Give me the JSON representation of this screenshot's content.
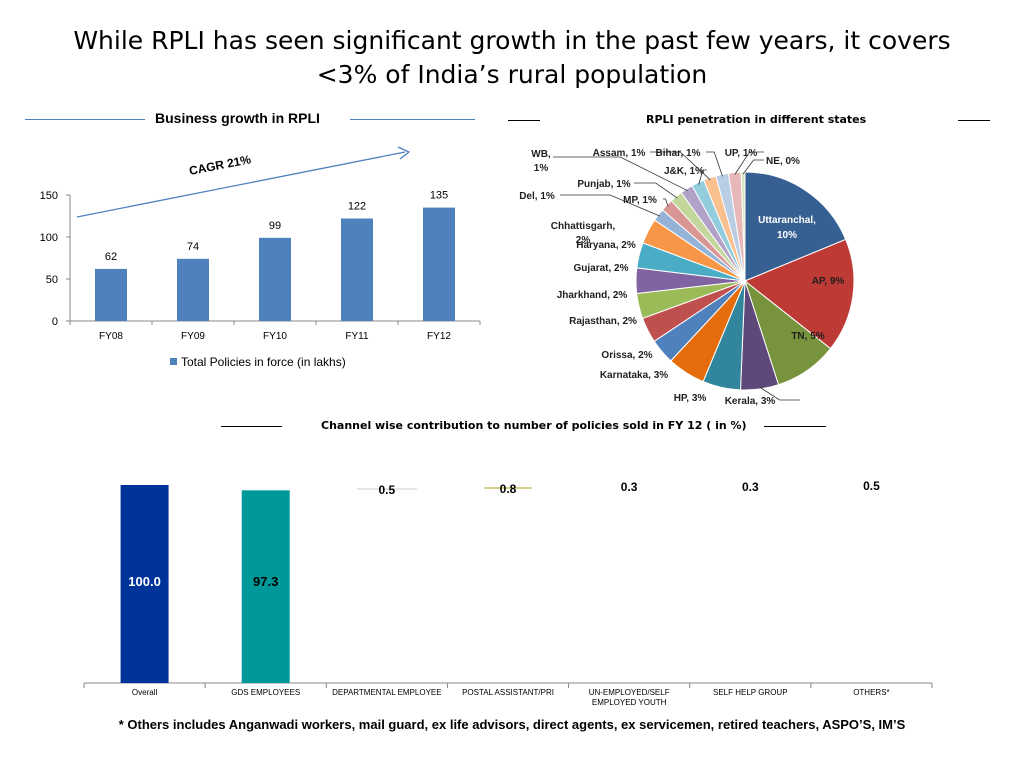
{
  "slide": {
    "title": "While RPLI has seen significant growth in the past few years, it covers <3% of India’s rural population",
    "footnote": "* Others includes Anganwadi workers, mail guard, ex life advisors, direct agents, ex servicemen, retired teachers, ASPO’S, IM’S"
  },
  "panels": {
    "growth_title": "Business growth in RPLI",
    "cagr_label": "CAGR 21%",
    "pie_title": "RPLI penetration in different states",
    "channel_title": "Channel wise contribution to number of policies sold in FY 12 ( in %)"
  },
  "colors": {
    "bar_blue": "#4F81BD",
    "overall_bar": "#003399",
    "gds_bar": "#009999",
    "rule_blue": "#4F81BD"
  },
  "chart_data": [
    {
      "type": "bar",
      "title": "Business growth in RPLI",
      "categories": [
        "FY08",
        "FY09",
        "FY10",
        "FY11",
        "FY12"
      ],
      "series": [
        {
          "name": "Total Policies in force (in lakhs)",
          "values": [
            62,
            74,
            99,
            122,
            135
          ]
        }
      ],
      "ylim": [
        0,
        150
      ],
      "yticks": [
        0,
        50,
        100,
        150
      ],
      "grid": false,
      "legend": "bottom",
      "annotation": "CAGR 21%"
    },
    {
      "type": "pie",
      "title": "RPLI penetration in different states",
      "labels": [
        "Uttaranchal",
        "AP",
        "TN",
        "Kerala",
        "HP",
        "Karnataka",
        "Orissa",
        "Rajasthan",
        "Jharkhand",
        "Gujarat",
        "Haryana",
        "Chhattisgarh",
        "Del",
        "MP",
        "Punjab",
        "WB",
        "J&K",
        "Assam",
        "Bihar",
        "UP",
        "NE"
      ],
      "values": [
        10,
        9,
        5,
        3,
        3,
        3,
        2,
        2,
        2,
        2,
        2,
        2,
        1,
        1,
        1,
        1,
        1,
        1,
        1,
        1,
        0
      ],
      "display_labels": [
        "Uttaranchal, 10%",
        "AP, 9%",
        "TN, 5%",
        "Kerala, 3%",
        "HP, 3%",
        "Karnataka, 3%",
        "Orissa, 2%",
        "Rajasthan, 2%",
        "Jharkhand, 2%",
        "Gujarat, 2%",
        "Haryana, 2%",
        "Chhattisgarh, 2%",
        "Del, 1%",
        "MP, 1%",
        "Punjab, 1%",
        "WB, 1%",
        "J&K, 1%",
        "Assam, 1%",
        "Bihar, 1%",
        "UP, 1%",
        "NE, 0%"
      ],
      "colors": [
        "#376092",
        "#BE3A35",
        "#77933C",
        "#5F497A",
        "#31859C",
        "#E46C0A",
        "#4F81BD",
        "#C0504D",
        "#9BBB59",
        "#8064A2",
        "#4BACC6",
        "#F79646",
        "#95B3D7",
        "#D99694",
        "#C3D69B",
        "#B3A2C7",
        "#93CDDD",
        "#FAC090",
        "#B9CDE5",
        "#E6B9B8",
        "#D7E4BD"
      ]
    },
    {
      "type": "bar",
      "title": "Channel wise contribution to number of policies sold in FY 12 ( in %)",
      "categories": [
        "Overall",
        "GDS EMPLOYEES",
        "DEPARTMENTAL EMPLOYEE",
        "POSTAL ASSISTANT/PRI",
        "UN-EMPLOYED/SELF EMPLOYED YOUTH",
        "SELF HELP GROUP",
        "OTHERS*"
      ],
      "values": [
        100.0,
        97.3,
        0.5,
        0.8,
        0.3,
        0.3,
        0.5
      ],
      "value_labels": [
        "100.0",
        "97.3",
        "0.5",
        "0.8",
        "0.3",
        "0.3",
        "0.5"
      ],
      "ylim": [
        0,
        100
      ],
      "grid": false
    }
  ]
}
